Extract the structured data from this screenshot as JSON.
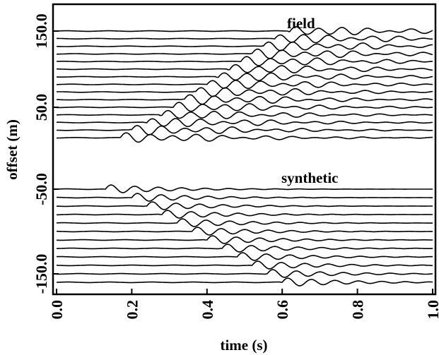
{
  "chart_data": {
    "type": "line",
    "subtype": "seismic-wiggle-traces",
    "xlabel": "time (s)",
    "ylabel": "offset (m)",
    "xlim": [
      0.0,
      1.0
    ],
    "ylim": [
      -170,
      170
    ],
    "xticks": [
      0.0,
      0.2,
      0.4,
      0.6,
      0.8,
      1.0
    ],
    "xtick_labels": [
      "0.0",
      "0.2",
      "0.4",
      "0.6",
      "0.8",
      "1.0"
    ],
    "yticks": [
      150,
      50,
      -50,
      -150
    ],
    "ytick_labels": [
      "150.0",
      "50.0",
      "-50.0",
      "-150.0"
    ],
    "grid": false,
    "legend": "none",
    "line_color": "#000000",
    "annotations": [
      {
        "text": "field",
        "x": 0.82,
        "y": 155
      },
      {
        "text": "synthetic",
        "x": 0.78,
        "y": -40
      }
    ],
    "series": [
      {
        "name": "field",
        "trace_offsets": [
          150,
          140,
          130,
          120,
          110,
          100,
          90,
          80,
          70,
          60,
          50,
          40,
          30,
          20,
          10
        ],
        "first_arrival_times": [
          0.62,
          0.58,
          0.55,
          0.52,
          0.49,
          0.46,
          0.43,
          0.4,
          0.37,
          0.34,
          0.31,
          0.28,
          0.24,
          0.2,
          0.17
        ]
      },
      {
        "name": "synthetic",
        "trace_offsets": [
          -50,
          -60,
          -70,
          -80,
          -90,
          -100,
          -110,
          -120,
          -130,
          -140,
          -150,
          -160
        ],
        "first_arrival_times": [
          0.13,
          0.2,
          0.24,
          0.28,
          0.32,
          0.36,
          0.4,
          0.44,
          0.48,
          0.52,
          0.56,
          0.6
        ]
      }
    ]
  }
}
